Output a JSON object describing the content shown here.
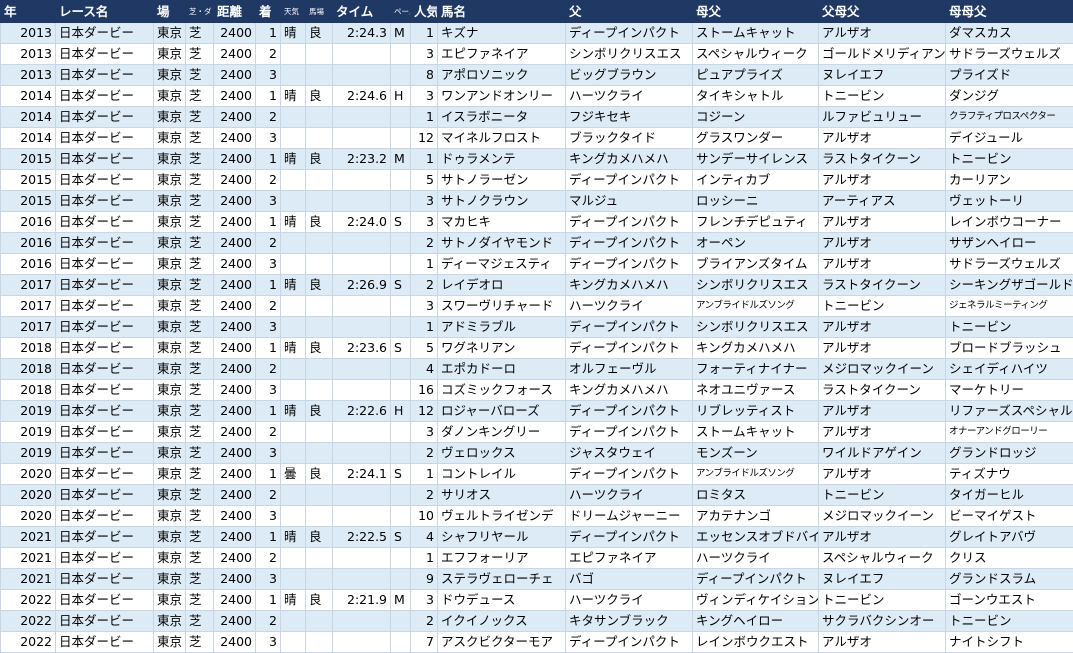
{
  "table": {
    "header": [
      "年",
      "レース名",
      "場",
      "芝・ダ",
      "距離",
      "着",
      "天気",
      "馬場",
      "タイム",
      "ペース",
      "人気",
      "馬名",
      "父",
      "母父",
      "父母父",
      "母母父"
    ],
    "rows": [
      [
        "2013",
        "日本ダービー",
        "東京",
        "芝",
        "2400",
        "1",
        "晴",
        "良",
        "2:24.3",
        "M",
        "1",
        "キズナ",
        "ディープインパクト",
        "ストームキャット",
        "アルザオ",
        "ダマスカス"
      ],
      [
        "2013",
        "日本ダービー",
        "東京",
        "芝",
        "2400",
        "2",
        null,
        null,
        null,
        null,
        "3",
        "エピファネイア",
        "シンボリクリスエス",
        "スペシャルウィーク",
        "ゴールドメリディアン",
        "サドラーズウェルズ"
      ],
      [
        "2013",
        "日本ダービー",
        "東京",
        "芝",
        "2400",
        "3",
        null,
        null,
        null,
        null,
        "8",
        "アポロソニック",
        "ビッグブラウン",
        "ピュアプライズ",
        "ヌレイエフ",
        "プライズド"
      ],
      [
        "2014",
        "日本ダービー",
        "東京",
        "芝",
        "2400",
        "1",
        "晴",
        "良",
        "2:24.6",
        "H",
        "3",
        "ワンアンドオンリー",
        "ハーツクライ",
        "タイキシャトル",
        "トニービン",
        "ダンジグ"
      ],
      [
        "2014",
        "日本ダービー",
        "東京",
        "芝",
        "2400",
        "2",
        null,
        null,
        null,
        null,
        "1",
        "イスラボニータ",
        "フジキセキ",
        "コジーン",
        "ルファビュリュー",
        "クラフティプロスペクター"
      ],
      [
        "2014",
        "日本ダービー",
        "東京",
        "芝",
        "2400",
        "3",
        null,
        null,
        null,
        null,
        "12",
        "マイネルフロスト",
        "ブラックタイド",
        "グラスワンダー",
        "アルザオ",
        "デイジュール"
      ],
      [
        "2015",
        "日本ダービー",
        "東京",
        "芝",
        "2400",
        "1",
        "晴",
        "良",
        "2:23.2",
        "M",
        "1",
        "ドゥラメンテ",
        "キングカメハメハ",
        "サンデーサイレンス",
        "ラストタイクーン",
        "トニービン"
      ],
      [
        "2015",
        "日本ダービー",
        "東京",
        "芝",
        "2400",
        "2",
        null,
        null,
        null,
        null,
        "5",
        "サトノラーゼン",
        "ディープインパクト",
        "インティカブ",
        "アルザオ",
        "カーリアン"
      ],
      [
        "2015",
        "日本ダービー",
        "東京",
        "芝",
        "2400",
        "3",
        null,
        null,
        null,
        null,
        "3",
        "サトノクラウン",
        "マルジュ",
        "ロッシーニ",
        "アーティアス",
        "ヴェットーリ"
      ],
      [
        "2016",
        "日本ダービー",
        "東京",
        "芝",
        "2400",
        "1",
        "晴",
        "良",
        "2:24.0",
        "S",
        "3",
        "マカヒキ",
        "ディープインパクト",
        "フレンチデピュティ",
        "アルザオ",
        "レインボウコーナー"
      ],
      [
        "2016",
        "日本ダービー",
        "東京",
        "芝",
        "2400",
        "2",
        null,
        null,
        null,
        null,
        "2",
        "サトノダイヤモンド",
        "ディープインパクト",
        "オーペン",
        "アルザオ",
        "サザンヘイロー"
      ],
      [
        "2016",
        "日本ダービー",
        "東京",
        "芝",
        "2400",
        "3",
        null,
        null,
        null,
        null,
        "1",
        "ディーマジェスティ",
        "ディープインパクト",
        "ブライアンズタイム",
        "アルザオ",
        "サドラーズウェルズ"
      ],
      [
        "2017",
        "日本ダービー",
        "東京",
        "芝",
        "2400",
        "1",
        "晴",
        "良",
        "2:26.9",
        "S",
        "2",
        "レイデオロ",
        "キングカメハメハ",
        "シンボリクリスエス",
        "ラストタイクーン",
        "シーキングザゴールド"
      ],
      [
        "2017",
        "日本ダービー",
        "東京",
        "芝",
        "2400",
        "2",
        null,
        null,
        null,
        null,
        "3",
        "スワーヴリチャード",
        "ハーツクライ",
        "アンブライドルズソング",
        "トニービン",
        "ジェネラルミーティング"
      ],
      [
        "2017",
        "日本ダービー",
        "東京",
        "芝",
        "2400",
        "3",
        null,
        null,
        null,
        null,
        "1",
        "アドミラブル",
        "ディープインパクト",
        "シンボリクリスエス",
        "アルザオ",
        "トニービン"
      ],
      [
        "2018",
        "日本ダービー",
        "東京",
        "芝",
        "2400",
        "1",
        "晴",
        "良",
        "2:23.6",
        "S",
        "5",
        "ワグネリアン",
        "ディープインパクト",
        "キングカメハメハ",
        "アルザオ",
        "ブロードブラッシュ"
      ],
      [
        "2018",
        "日本ダービー",
        "東京",
        "芝",
        "2400",
        "2",
        null,
        null,
        null,
        null,
        "4",
        "エポカドーロ",
        "オルフェーヴル",
        "フォーティナイナー",
        "メジロマックイーン",
        "シェイディハイツ"
      ],
      [
        "2018",
        "日本ダービー",
        "東京",
        "芝",
        "2400",
        "3",
        null,
        null,
        null,
        null,
        "16",
        "コズミックフォース",
        "キングカメハメハ",
        "ネオユニヴァース",
        "ラストタイクーン",
        "マーケトリー"
      ],
      [
        "2019",
        "日本ダービー",
        "東京",
        "芝",
        "2400",
        "1",
        "晴",
        "良",
        "2:22.6",
        "H",
        "12",
        "ロジャーバローズ",
        "ディープインパクト",
        "リブレッティスト",
        "アルザオ",
        "リファーズスペシャル"
      ],
      [
        "2019",
        "日本ダービー",
        "東京",
        "芝",
        "2400",
        "2",
        null,
        null,
        null,
        null,
        "3",
        "ダノンキングリー",
        "ディープインパクト",
        "ストームキャット",
        "アルザオ",
        "オナーアンドグローリー"
      ],
      [
        "2019",
        "日本ダービー",
        "東京",
        "芝",
        "2400",
        "3",
        null,
        null,
        null,
        null,
        "2",
        "ヴェロックス",
        "ジャスタウェイ",
        "モンズーン",
        "ワイルドアゲイン",
        "グランドロッジ"
      ],
      [
        "2020",
        "日本ダービー",
        "東京",
        "芝",
        "2400",
        "1",
        "曇",
        "良",
        "2:24.1",
        "S",
        "1",
        "コントレイル",
        "ディープインパクト",
        "アンブライドルズソング",
        "アルザオ",
        "ティズナウ"
      ],
      [
        "2020",
        "日本ダービー",
        "東京",
        "芝",
        "2400",
        "2",
        null,
        null,
        null,
        null,
        "2",
        "サリオス",
        "ハーツクライ",
        "ロミタス",
        "トニービン",
        "タイガーヒル"
      ],
      [
        "2020",
        "日本ダービー",
        "東京",
        "芝",
        "2400",
        "3",
        null,
        null,
        null,
        null,
        "10",
        "ヴェルトライゼンデ",
        "ドリームジャーニー",
        "アカテナンゴ",
        "メジロマックイーン",
        "ビーマイゲスト"
      ],
      [
        "2021",
        "日本ダービー",
        "東京",
        "芝",
        "2400",
        "1",
        "晴",
        "良",
        "2:22.5",
        "S",
        "4",
        "シャフリヤール",
        "ディープインパクト",
        "エッセンスオブドバイ",
        "アルザオ",
        "グレイトアバヴ"
      ],
      [
        "2021",
        "日本ダービー",
        "東京",
        "芝",
        "2400",
        "2",
        null,
        null,
        null,
        null,
        "1",
        "エフフォーリア",
        "エピファネイア",
        "ハーツクライ",
        "スペシャルウィーク",
        "クリス"
      ],
      [
        "2021",
        "日本ダービー",
        "東京",
        "芝",
        "2400",
        "3",
        null,
        null,
        null,
        null,
        "9",
        "ステラヴェローチェ",
        "バゴ",
        "ディープインパクト",
        "ヌレイエフ",
        "グランドスラム"
      ],
      [
        "2022",
        "日本ダービー",
        "東京",
        "芝",
        "2400",
        "1",
        "晴",
        "良",
        "2:21.9",
        "M",
        "3",
        "ドウデュース",
        "ハーツクライ",
        "ヴィンディケイション",
        "トニービン",
        "ゴーンウエスト"
      ],
      [
        "2022",
        "日本ダービー",
        "東京",
        "芝",
        "2400",
        "2",
        null,
        null,
        null,
        null,
        "2",
        "イクイノックス",
        "キタサンブラック",
        "キングヘイロー",
        "サクラバクシンオー",
        "トニービン"
      ],
      [
        "2022",
        "日本ダービー",
        "東京",
        "芝",
        "2400",
        "3",
        null,
        null,
        null,
        null,
        "7",
        "アスクビクターモア",
        "ディープインパクト",
        "レインボウクエスト",
        "アルザオ",
        "ナイトシフト"
      ]
    ]
  }
}
